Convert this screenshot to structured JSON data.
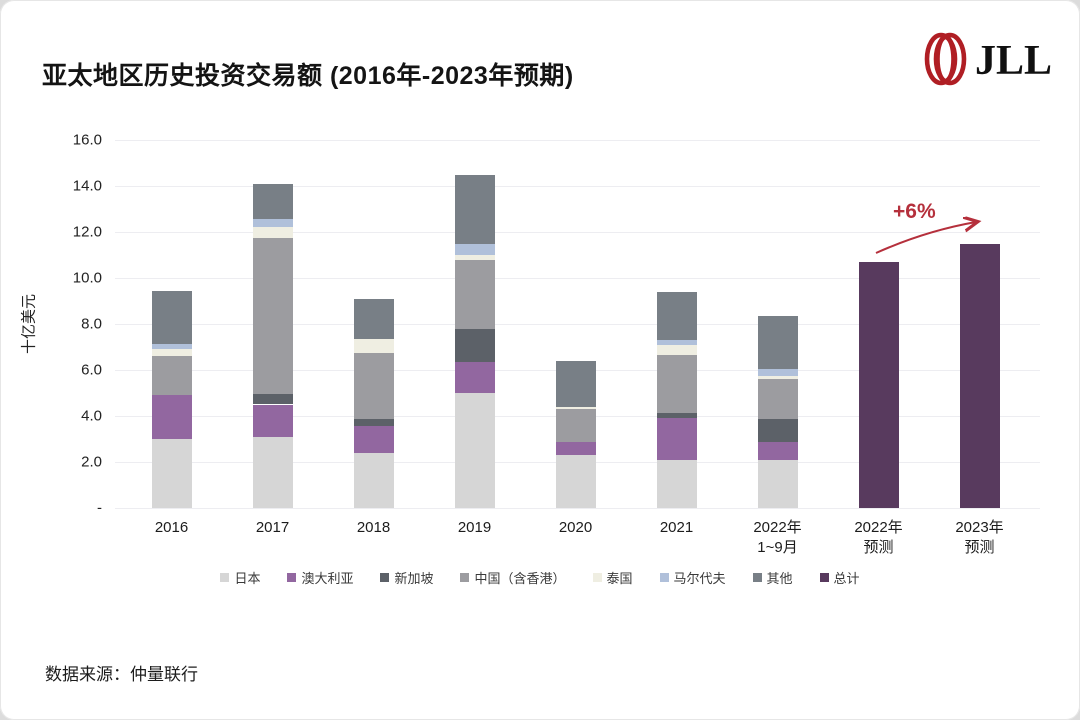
{
  "header": {
    "title": "亚太地区历史投资交易额 (2016年-2023年预期)",
    "logo_text": "JLL"
  },
  "footer": {
    "source": "数据来源：仲量联行"
  },
  "colors": {
    "brand_red": "#b01e24",
    "annotation_red": "#b5303c",
    "gridline": "#ededf1",
    "text_dark": "#1c1c1c"
  },
  "chart_data": {
    "type": "bar",
    "stacked": true,
    "title": "亚太地区历史投资交易额 (2016年-2023年预期)",
    "ylabel": "十亿美元",
    "ylim": [
      0,
      16
    ],
    "yticks": [
      0,
      2,
      4,
      6,
      8,
      10,
      12,
      14,
      16
    ],
    "ytick_labels": [
      "-",
      "2.0",
      "4.0",
      "6.0",
      "8.0",
      "10.0",
      "12.0",
      "14.0",
      "16.0"
    ],
    "grid": true,
    "legend_position": "bottom",
    "categories": [
      "2016",
      "2017",
      "2018",
      "2019",
      "2020",
      "2021",
      "2022年\n1~9月",
      "2022年\n预测",
      "2023年\n预测"
    ],
    "series": [
      {
        "name": "日本",
        "color": "#d6d6d6",
        "values": [
          3.0,
          3.1,
          2.4,
          5.0,
          2.3,
          2.1,
          2.1,
          0,
          0
        ]
      },
      {
        "name": "澳大利亚",
        "color": "#9267a0",
        "values": [
          1.9,
          1.4,
          1.15,
          1.35,
          0.55,
          1.8,
          0.75,
          0,
          0
        ]
      },
      {
        "name": "新加坡",
        "color": "#5c6168",
        "values": [
          0,
          0.45,
          0.3,
          1.45,
          0,
          0.25,
          1.0,
          0,
          0
        ]
      },
      {
        "name": "中国（含香港）",
        "color": "#9c9ca0",
        "values": [
          1.7,
          6.8,
          2.9,
          3.0,
          1.45,
          2.5,
          1.75,
          0,
          0
        ]
      },
      {
        "name": "泰国",
        "color": "#efeee2",
        "values": [
          0.3,
          0.45,
          0.6,
          0.2,
          0.1,
          0.45,
          0.15,
          0,
          0
        ]
      },
      {
        "name": "马尔代夫",
        "color": "#b0c0da",
        "values": [
          0.25,
          0.35,
          0,
          0.5,
          0,
          0.2,
          0.3,
          0,
          0
        ]
      },
      {
        "name": "其他",
        "color": "#787f86",
        "values": [
          2.3,
          1.55,
          1.75,
          3.0,
          2.0,
          2.1,
          2.3,
          0,
          0
        ]
      },
      {
        "name": "总计",
        "color": "#583a5e",
        "values": [
          0,
          0,
          0,
          0,
          0,
          0,
          0,
          10.7,
          11.5
        ]
      }
    ],
    "totals": [
      9.45,
      14.1,
      9.1,
      14.5,
      6.4,
      9.4,
      8.35,
      10.7,
      11.5
    ],
    "annotation": {
      "text": "+6%",
      "color": "#b5303c",
      "from_category": "2022年\n预测",
      "to_category": "2023年\n预测"
    }
  }
}
